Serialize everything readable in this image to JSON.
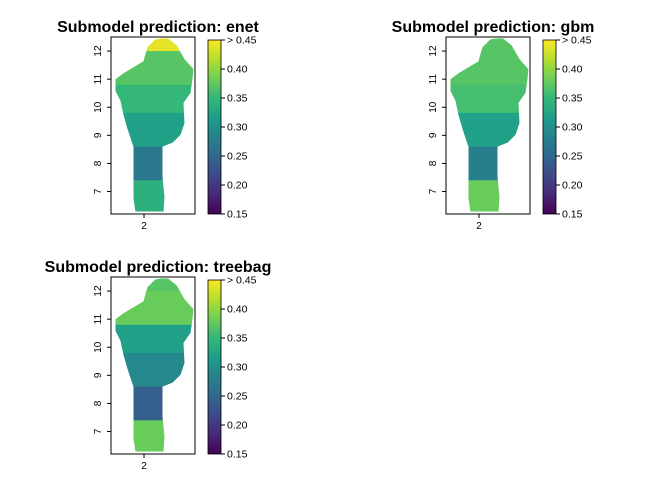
{
  "chart_data": [
    {
      "type": "heatmap",
      "title": "Submodel prediction: enet",
      "x_ticks": [
        "2"
      ],
      "y_ticks": [
        "7",
        "8",
        "9",
        "10",
        "11",
        "12"
      ],
      "ylim": [
        6.2,
        12.5
      ],
      "color_scale": {
        "palette": "viridis",
        "range": [
          0.15,
          0.45
        ],
        "tick_labels": [
          "0.15",
          "0.20",
          "0.25",
          "0.30",
          "0.35",
          "0.40",
          "> 0.45"
        ],
        "colors": [
          "#440154",
          "#482878",
          "#3e4989",
          "#31688e",
          "#26828e",
          "#1f9e89",
          "#35b779",
          "#6ece58",
          "#b5de2b",
          "#fde725"
        ]
      },
      "bands": [
        {
          "lat_range": [
            12.0,
            12.45
          ],
          "level": 0.44
        },
        {
          "lat_range": [
            10.8,
            12.0
          ],
          "level": 0.37
        },
        {
          "lat_range": [
            9.8,
            10.8
          ],
          "level": 0.35
        },
        {
          "lat_range": [
            8.6,
            9.8
          ],
          "level": 0.32
        },
        {
          "lat_range": [
            7.4,
            8.6
          ],
          "level": 0.27
        },
        {
          "lat_range": [
            6.2,
            7.4
          ],
          "level": 0.34
        }
      ]
    },
    {
      "type": "heatmap",
      "title": "Submodel prediction: gbm",
      "x_ticks": [
        "2"
      ],
      "y_ticks": [
        "7",
        "8",
        "9",
        "10",
        "11",
        "12"
      ],
      "ylim": [
        6.2,
        12.5
      ],
      "color_scale": {
        "palette": "viridis",
        "range": [
          0.15,
          0.45
        ],
        "tick_labels": [
          "0.15",
          "0.20",
          "0.25",
          "0.30",
          "0.35",
          "0.40",
          "> 0.45"
        ],
        "colors": [
          "#440154",
          "#482878",
          "#3e4989",
          "#31688e",
          "#26828e",
          "#1f9e89",
          "#35b779",
          "#6ece58",
          "#b5de2b",
          "#fde725"
        ]
      },
      "bands": [
        {
          "lat_range": [
            12.0,
            12.45
          ],
          "level": 0.37
        },
        {
          "lat_range": [
            10.8,
            12.0
          ],
          "level": 0.37
        },
        {
          "lat_range": [
            9.8,
            10.8
          ],
          "level": 0.36
        },
        {
          "lat_range": [
            8.6,
            9.8
          ],
          "level": 0.32
        },
        {
          "lat_range": [
            7.4,
            8.6
          ],
          "level": 0.28
        },
        {
          "lat_range": [
            6.2,
            7.4
          ],
          "level": 0.38
        }
      ]
    },
    {
      "type": "heatmap",
      "title": "Submodel prediction: treebag",
      "x_ticks": [
        "2"
      ],
      "y_ticks": [
        "7",
        "8",
        "9",
        "10",
        "11",
        "12"
      ],
      "ylim": [
        6.2,
        12.5
      ],
      "color_scale": {
        "palette": "viridis",
        "range": [
          0.15,
          0.45
        ],
        "tick_labels": [
          "0.15",
          "0.20",
          "0.25",
          "0.30",
          "0.35",
          "0.40",
          "> 0.45"
        ],
        "colors": [
          "#440154",
          "#482878",
          "#3e4989",
          "#31688e",
          "#26828e",
          "#1f9e89",
          "#35b779",
          "#6ece58",
          "#b5de2b",
          "#fde725"
        ]
      },
      "bands": [
        {
          "lat_range": [
            12.0,
            12.45
          ],
          "level": 0.37
        },
        {
          "lat_range": [
            10.8,
            12.0
          ],
          "level": 0.38
        },
        {
          "lat_range": [
            9.8,
            10.8
          ],
          "level": 0.32
        },
        {
          "lat_range": [
            8.6,
            9.8
          ],
          "level": 0.29
        },
        {
          "lat_range": [
            7.4,
            8.6
          ],
          "level": 0.24
        },
        {
          "lat_range": [
            6.2,
            7.4
          ],
          "level": 0.38
        }
      ]
    }
  ]
}
